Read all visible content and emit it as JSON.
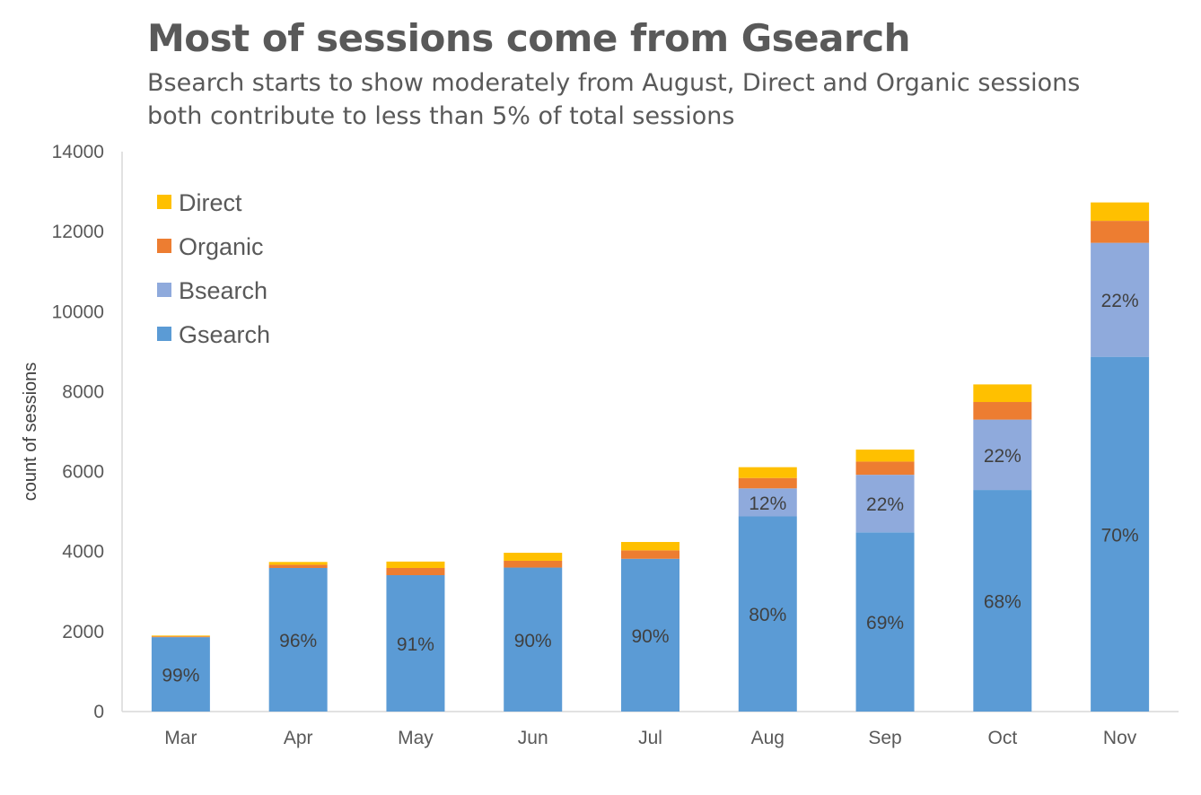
{
  "title": "Most of sessions come from Gsearch",
  "subtitle": "Bsearch starts to show moderately from August, Direct and Organic sessions both contribute to less than 5% of total sessions",
  "chart_data": {
    "type": "bar",
    "stacked": true,
    "categories": [
      "Mar",
      "Apr",
      "May",
      "Jun",
      "Jul",
      "Aug",
      "Sep",
      "Oct",
      "Nov"
    ],
    "series": [
      {
        "name": "Gsearch",
        "color": "#5B9BD5",
        "values": [
          1860,
          3590,
          3410,
          3600,
          3820,
          4880,
          4480,
          5540,
          8870
        ],
        "labels": [
          "99%",
          "96%",
          "91%",
          "90%",
          "90%",
          "80%",
          "69%",
          "68%",
          "70%"
        ]
      },
      {
        "name": "Bsearch",
        "color": "#8FAADC",
        "values": [
          0,
          0,
          0,
          0,
          0,
          700,
          1440,
          1760,
          2850
        ],
        "labels": [
          "",
          "",
          "",
          "",
          "",
          "12%",
          "22%",
          "22%",
          "22%"
        ]
      },
      {
        "name": "Organic",
        "color": "#ED7D31",
        "values": [
          20,
          80,
          180,
          170,
          210,
          260,
          330,
          440,
          550
        ],
        "labels": [
          "",
          "",
          "",
          "",
          "",
          "",
          "",
          "",
          ""
        ]
      },
      {
        "name": "Direct",
        "color": "#FFC000",
        "values": [
          20,
          70,
          160,
          200,
          210,
          270,
          300,
          440,
          460
        ],
        "labels": [
          "",
          "",
          "",
          "",
          "",
          "",
          "",
          "",
          ""
        ]
      }
    ],
    "xlabel": "",
    "ylabel": "count of sessions",
    "ylim": [
      0,
      14000
    ],
    "yticks": [
      0,
      2000,
      4000,
      6000,
      8000,
      10000,
      12000,
      14000
    ],
    "grid": false,
    "legend": {
      "position": "top-left",
      "order": [
        "Direct",
        "Organic",
        "Bsearch",
        "Gsearch"
      ]
    }
  }
}
